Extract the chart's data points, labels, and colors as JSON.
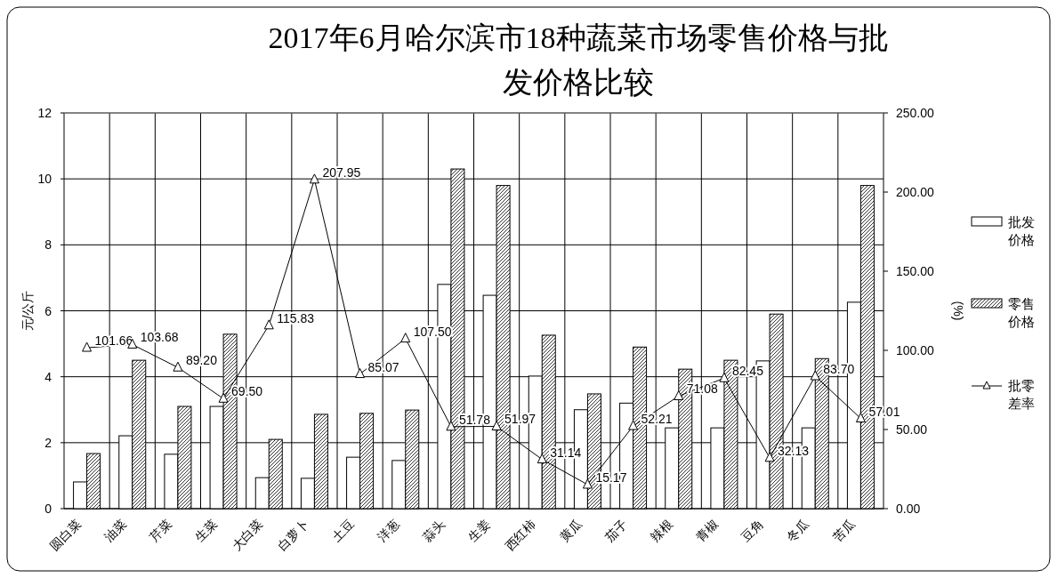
{
  "chart_data": {
    "type": "bar",
    "title": "2017年6月哈尔滨市18种蔬菜市场零售价格与批发价格比较",
    "ylabel": "元/公斤",
    "y2label": "(%)",
    "categories": [
      "圆白菜",
      "油菜",
      "芹菜",
      "生菜",
      "大白菜",
      "白萝卜",
      "土豆",
      "洋葱",
      "蒜头",
      "生姜",
      "西红柿",
      "黄瓜",
      "茄子",
      "辣根",
      "青椒",
      "豆角",
      "冬瓜",
      "苦瓜"
    ],
    "series": [
      {
        "name": "批发价格",
        "color": "#ffffff",
        "values": [
          0.81,
          2.21,
          1.65,
          3.1,
          0.94,
          0.92,
          1.56,
          1.46,
          6.8,
          6.47,
          4.02,
          3.0,
          3.2,
          2.45,
          2.45,
          4.48,
          2.45,
          6.26
        ]
      },
      {
        "name": "零售价格",
        "color": "#000000",
        "values": [
          1.67,
          4.5,
          3.1,
          5.29,
          2.1,
          2.86,
          2.89,
          2.99,
          10.3,
          9.8,
          5.26,
          3.48,
          4.9,
          4.23,
          4.5,
          5.9,
          4.55,
          9.8
        ]
      },
      {
        "name": "批零差率",
        "type": "line",
        "axis": "y2",
        "color": "#000000",
        "marker": "triangle",
        "values": [
          101.66,
          103.68,
          89.2,
          69.5,
          115.83,
          207.95,
          85.07,
          107.5,
          51.78,
          51.97,
          31.14,
          15.17,
          52.21,
          71.08,
          82.45,
          32.13,
          83.7,
          57.01
        ],
        "value_labels": [
          "101.66",
          "103.68",
          "89.20",
          "69.50",
          "115.83",
          "207.95",
          "85.07",
          "107.50",
          "51.78",
          "51.97",
          "31.14",
          "15.17",
          "52.21",
          "71.08",
          "82.45",
          "32.13",
          "83.70",
          "57.01"
        ]
      }
    ],
    "ylim": [
      0,
      12
    ],
    "yticks": [
      0,
      2,
      4,
      6,
      8,
      10,
      12
    ],
    "y2lim": [
      0,
      250
    ],
    "y2ticks": [
      {
        "value": 0,
        "label": "0.00"
      },
      {
        "value": 50,
        "label": "50.00"
      },
      {
        "value": 100,
        "label": "100.00"
      },
      {
        "value": 150,
        "label": "150.00"
      },
      {
        "value": 200,
        "label": "200.00"
      },
      {
        "value": 250,
        "label": "250.00"
      }
    ],
    "grid": true,
    "legend": "right"
  }
}
